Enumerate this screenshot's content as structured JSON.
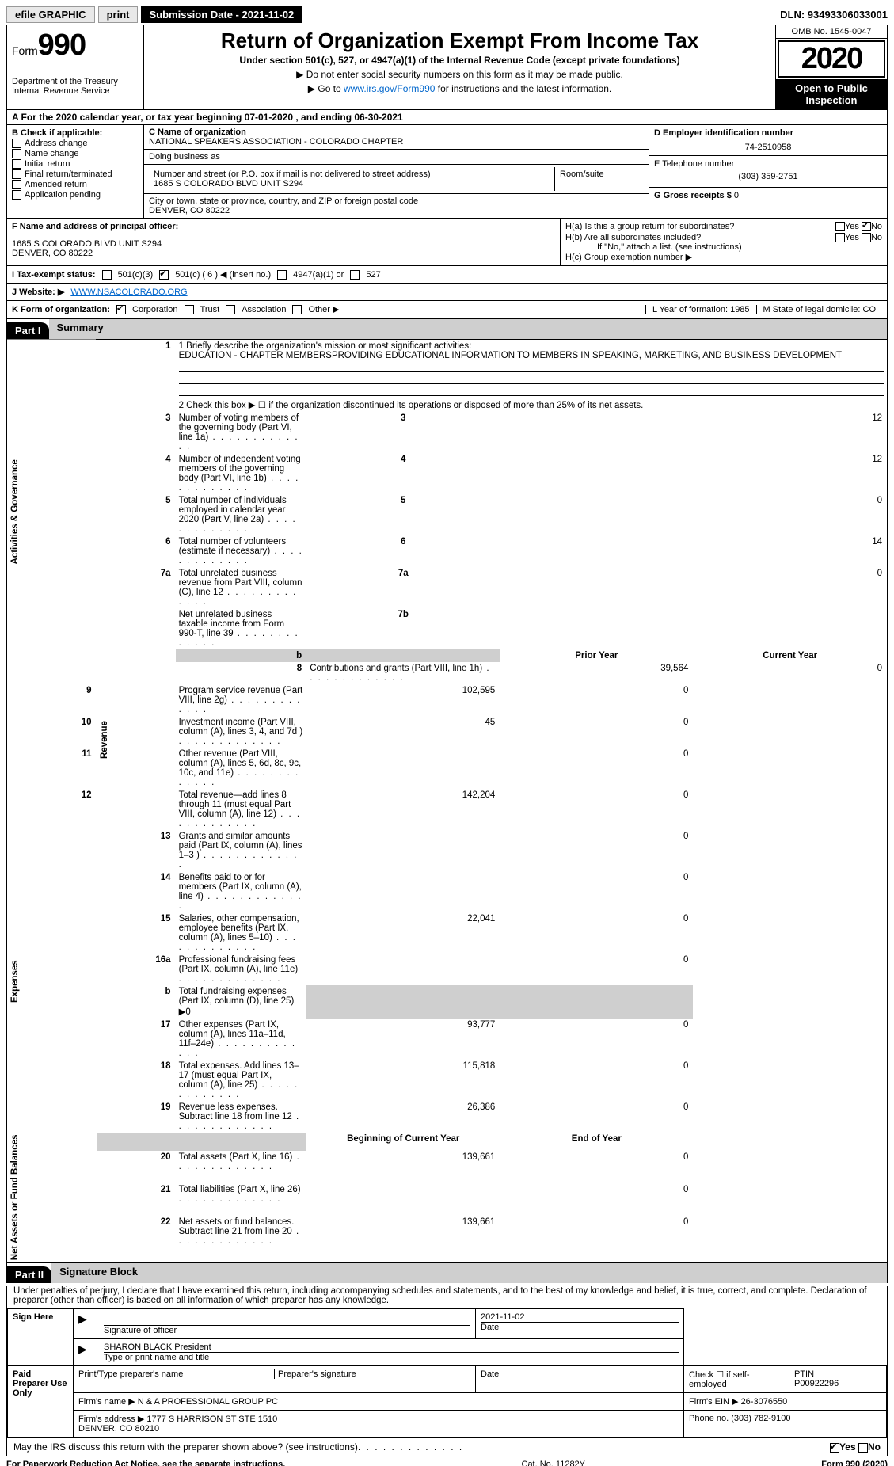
{
  "topbar": {
    "efile": "efile GRAPHIC",
    "print": "print",
    "subdate_label": "Submission Date - 2021-11-02",
    "dln": "DLN: 93493306033001"
  },
  "header": {
    "form_label": "Form",
    "form_no": "990",
    "dept": "Department of the Treasury\nInternal Revenue Service",
    "title": "Return of Organization Exempt From Income Tax",
    "sub": "Under section 501(c), 527, or 4947(a)(1) of the Internal Revenue Code (except private foundations)",
    "note1": "▶ Do not enter social security numbers on this form as it may be made public.",
    "note2_pre": "▶ Go to ",
    "note2_link": "www.irs.gov/Form990",
    "note2_post": " for instructions and the latest information.",
    "omb": "OMB No. 1545-0047",
    "year": "2020",
    "open": "Open to Public Inspection"
  },
  "rowA": "A For the 2020 calendar year, or tax year beginning 07-01-2020    , and ending 06-30-2021",
  "B": {
    "label": "B Check if applicable:",
    "opts": [
      "Address change",
      "Name change",
      "Initial return",
      "Final return/terminated",
      "Amended return",
      "Application pending"
    ]
  },
  "C": {
    "name_lbl": "C Name of organization",
    "name": "NATIONAL SPEAKERS ASSOCIATION - COLORADO CHAPTER",
    "dba_lbl": "Doing business as",
    "addr_lbl": "Number and street (or P.O. box if mail is not delivered to street address)",
    "room_lbl": "Room/suite",
    "addr": "1685 S COLORADO BLVD UNIT S294",
    "city_lbl": "City or town, state or province, country, and ZIP or foreign postal code",
    "city": "DENVER, CO  80222"
  },
  "D": {
    "lbl": "D Employer identification number",
    "val": "74-2510958"
  },
  "E": {
    "lbl": "E Telephone number",
    "val": "(303) 359-2751"
  },
  "G": {
    "lbl": "G Gross receipts $",
    "val": "0"
  },
  "F": {
    "lbl": "F  Name and address of principal officer:",
    "addr1": "1685 S COLORADO BLVD UNIT S294",
    "addr2": "DENVER, CO  80222"
  },
  "H": {
    "ha": "H(a)  Is this a group return for subordinates?",
    "hb": "H(b)  Are all subordinates included?",
    "hb_note": "If \"No,\" attach a list. (see instructions)",
    "hc": "H(c)  Group exemption number ▶"
  },
  "I": {
    "lbl": "I    Tax-exempt status:",
    "opts": [
      "501(c)(3)",
      "501(c) ( 6 ) ◀ (insert no.)",
      "4947(a)(1) or",
      "527"
    ]
  },
  "J": {
    "lbl": "J   Website: ▶",
    "val": "WWW.NSACOLORADO.ORG"
  },
  "K": {
    "lbl": "K Form of organization:",
    "opts": [
      "Corporation",
      "Trust",
      "Association",
      "Other ▶"
    ],
    "L": "L Year of formation: 1985",
    "M": "M State of legal domicile: CO"
  },
  "part1": {
    "hdr": "Part I",
    "title": "Summary",
    "l1_lbl": "1   Briefly describe the organization's mission or most significant activities:",
    "l1_txt": "EDUCATION - CHAPTER MEMBERSPROVIDING EDUCATIONAL INFORMATION TO MEMBERS IN SPEAKING, MARKETING, AND BUSINESS DEVELOPMENT",
    "l2": "2   Check this box ▶ ☐  if the organization discontinued its operations or disposed of more than 25% of its net assets.",
    "sideA": "Activities & Governance",
    "sideR": "Revenue",
    "sideE": "Expenses",
    "sideN": "Net Assets or Fund Balances",
    "rows_gov": [
      {
        "n": "3",
        "t": "Number of voting members of the governing body (Part VI, line 1a)",
        "box": "3",
        "v": "12"
      },
      {
        "n": "4",
        "t": "Number of independent voting members of the governing body (Part VI, line 1b)",
        "box": "4",
        "v": "12"
      },
      {
        "n": "5",
        "t": "Total number of individuals employed in calendar year 2020 (Part V, line 2a)",
        "box": "5",
        "v": "0"
      },
      {
        "n": "6",
        "t": "Total number of volunteers (estimate if necessary)",
        "box": "6",
        "v": "14"
      },
      {
        "n": "7a",
        "t": "Total unrelated business revenue from Part VIII, column (C), line 12",
        "box": "7a",
        "v": "0"
      },
      {
        "n": "",
        "t": "Net unrelated business taxable income from Form 990-T, line 39",
        "box": "7b",
        "v": ""
      }
    ],
    "col_py": "Prior Year",
    "col_cy": "Current Year",
    "rows_rev": [
      {
        "n": "8",
        "t": "Contributions and grants (Part VIII, line 1h)",
        "py": "39,564",
        "cy": "0"
      },
      {
        "n": "9",
        "t": "Program service revenue (Part VIII, line 2g)",
        "py": "102,595",
        "cy": "0"
      },
      {
        "n": "10",
        "t": "Investment income (Part VIII, column (A), lines 3, 4, and 7d )",
        "py": "45",
        "cy": "0"
      },
      {
        "n": "11",
        "t": "Other revenue (Part VIII, column (A), lines 5, 6d, 8c, 9c, 10c, and 11e)",
        "py": "",
        "cy": "0"
      },
      {
        "n": "12",
        "t": "Total revenue—add lines 8 through 11 (must equal Part VIII, column (A), line 12)",
        "py": "142,204",
        "cy": "0"
      }
    ],
    "rows_exp": [
      {
        "n": "13",
        "t": "Grants and similar amounts paid (Part IX, column (A), lines 1–3 )",
        "py": "",
        "cy": "0"
      },
      {
        "n": "14",
        "t": "Benefits paid to or for members (Part IX, column (A), line 4)",
        "py": "",
        "cy": "0"
      },
      {
        "n": "15",
        "t": "Salaries, other compensation, employee benefits (Part IX, column (A), lines 5–10)",
        "py": "22,041",
        "cy": "0"
      },
      {
        "n": "16a",
        "t": "Professional fundraising fees (Part IX, column (A), line 11e)",
        "py": "",
        "cy": "0"
      },
      {
        "n": "b",
        "t": "Total fundraising expenses (Part IX, column (D), line 25) ▶0",
        "py": "GREY",
        "cy": "GREY"
      },
      {
        "n": "17",
        "t": "Other expenses (Part IX, column (A), lines 11a–11d, 11f–24e)",
        "py": "93,777",
        "cy": "0"
      },
      {
        "n": "18",
        "t": "Total expenses. Add lines 13–17 (must equal Part IX, column (A), line 25)",
        "py": "115,818",
        "cy": "0"
      },
      {
        "n": "19",
        "t": "Revenue less expenses. Subtract line 18 from line 12",
        "py": "26,386",
        "cy": "0"
      }
    ],
    "col_boy": "Beginning of Current Year",
    "col_eoy": "End of Year",
    "rows_net": [
      {
        "n": "20",
        "t": "Total assets (Part X, line 16)",
        "py": "139,661",
        "cy": "0"
      },
      {
        "n": "21",
        "t": "Total liabilities (Part X, line 26)",
        "py": "",
        "cy": "0"
      },
      {
        "n": "22",
        "t": "Net assets or fund balances. Subtract line 21 from line 20",
        "py": "139,661",
        "cy": "0"
      }
    ]
  },
  "part2": {
    "hdr": "Part II",
    "title": "Signature Block",
    "decl": "Under penalties of perjury, I declare that I have examined this return, including accompanying schedules and statements, and to the best of my knowledge and belief, it is true, correct, and complete. Declaration of preparer (other than officer) is based on all information of which preparer has any knowledge.",
    "sign_here": "Sign Here",
    "sig_officer": "Signature of officer",
    "sig_date": "2021-11-02",
    "date_lbl": "Date",
    "officer_name": "SHARON BLACK President",
    "officer_name_lbl": "Type or print name and title",
    "paid": "Paid Preparer Use Only",
    "p_name_lbl": "Print/Type preparer's name",
    "p_sig_lbl": "Preparer's signature",
    "p_date_lbl": "Date",
    "p_self": "Check ☐ if self-employed",
    "ptin_lbl": "PTIN",
    "ptin": "P00922296",
    "firm_name_lbl": "Firm's name    ▶",
    "firm_name": "N & A PROFESSIONAL GROUP PC",
    "firm_ein_lbl": "Firm's EIN ▶",
    "firm_ein": "26-3076550",
    "firm_addr_lbl": "Firm's address ▶",
    "firm_addr": "1777 S HARRISON ST STE 1510\nDENVER, CO  80210",
    "phone_lbl": "Phone no.",
    "phone": "(303) 782-9100",
    "discuss": "May the IRS discuss this return with the preparer shown above? (see instructions)"
  },
  "footer": {
    "left": "For Paperwork Reduction Act Notice, see the separate instructions.",
    "mid": "Cat. No. 11282Y",
    "right": "Form 990 (2020)"
  }
}
